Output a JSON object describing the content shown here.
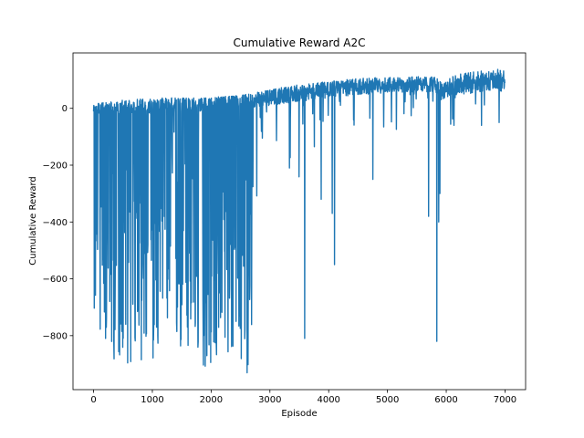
{
  "chart_data": {
    "type": "line",
    "title": "Cumulative Reward A2C",
    "xlabel": "Episode",
    "ylabel": "Cumulative Reward",
    "xlim": [
      -350,
      7350
    ],
    "ylim": [
      -990,
      195
    ],
    "x_ticks": [
      0,
      1000,
      2000,
      3000,
      4000,
      5000,
      6000,
      7000
    ],
    "x_tick_labels": [
      "0",
      "1000",
      "2000",
      "3000",
      "4000",
      "5000",
      "6000",
      "7000"
    ],
    "y_ticks": [
      -800,
      -600,
      -400,
      -200,
      0
    ],
    "y_tick_labels": [
      "−800",
      "−600",
      "−400",
      "−200",
      "0"
    ],
    "grid": false,
    "legend": "none",
    "series_color": "#1f77b4",
    "series": [
      {
        "n_points": 7000,
        "upper_envelope": [
          [
            0,
            15
          ],
          [
            500,
            30
          ],
          [
            1000,
            35
          ],
          [
            1500,
            38
          ],
          [
            2000,
            40
          ],
          [
            2500,
            45
          ],
          [
            3000,
            65
          ],
          [
            3500,
            85
          ],
          [
            4000,
            95
          ],
          [
            4500,
            105
          ],
          [
            5000,
            110
          ],
          [
            5800,
            112
          ],
          [
            5900,
            95
          ],
          [
            6200,
            120
          ],
          [
            6500,
            130
          ],
          [
            7000,
            140
          ]
        ],
        "typical_band": [
          [
            0,
            -20,
            10
          ],
          [
            1000,
            -20,
            25
          ],
          [
            2000,
            -10,
            30
          ],
          [
            3000,
            10,
            60
          ],
          [
            4000,
            40,
            85
          ],
          [
            5000,
            55,
            100
          ],
          [
            5800,
            60,
            105
          ],
          [
            5850,
            20,
            70
          ],
          [
            6000,
            40,
            95
          ],
          [
            7000,
            70,
            120
          ]
        ],
        "lower_envelope": [
          [
            0,
            -760
          ],
          [
            300,
            -890
          ],
          [
            800,
            -910
          ],
          [
            1300,
            -870
          ],
          [
            1800,
            -920
          ],
          [
            2000,
            -930
          ],
          [
            2300,
            -880
          ],
          [
            2650,
            -940
          ],
          [
            2800,
            -640
          ],
          [
            3000,
            -220
          ],
          [
            3500,
            -250
          ],
          [
            4000,
            -140
          ],
          [
            5000,
            -110
          ],
          [
            6000,
            -80
          ],
          [
            7000,
            -40
          ]
        ],
        "dips": [
          [
            3590,
            -810
          ],
          [
            3330,
            -210
          ],
          [
            3870,
            -320
          ],
          [
            4060,
            -370
          ],
          [
            4100,
            -550
          ],
          [
            4750,
            -250
          ],
          [
            5700,
            -380
          ],
          [
            5840,
            -820
          ],
          [
            5870,
            -400
          ],
          [
            5890,
            -300
          ],
          [
            6130,
            -60
          ],
          [
            6600,
            -60
          ],
          [
            6900,
            -50
          ]
        ]
      }
    ]
  }
}
